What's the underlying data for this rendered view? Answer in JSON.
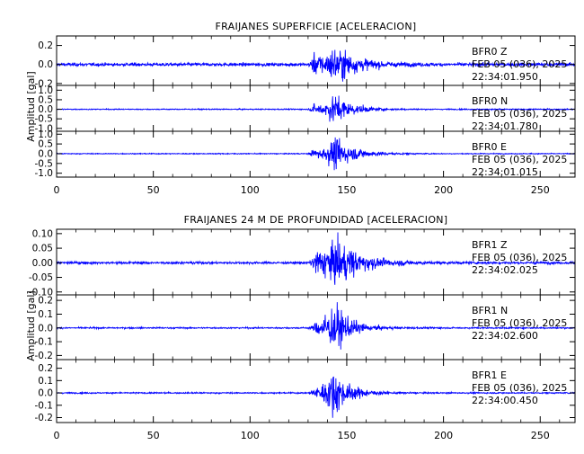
{
  "chart_data": [
    {
      "type": "line",
      "title": "FRAIJANES SUPERFICIE [ACELERACION]",
      "ylabel": "Amplitud [gal]",
      "xlabel": "",
      "xlim": [
        0,
        268
      ],
      "xticks": [
        0,
        50,
        100,
        150,
        200,
        250
      ],
      "xtick_labels": [
        "0",
        "50",
        "100",
        "150",
        "200",
        "250"
      ],
      "line_color": "#0000ff",
      "panels": [
        {
          "station": "BFR0",
          "component": "Z",
          "date": "FEB 05 (036), 2025",
          "time": "22:34:01.950",
          "ylim": [
            -0.22,
            0.3
          ],
          "yticks": [
            -0.2,
            0.0,
            0.2
          ],
          "ytick_labels": [
            "-0.2",
            "0.0",
            "0.2"
          ],
          "noise_level": 0.025,
          "events": [
            {
              "onset_s": 129,
              "peak_s": 144.5,
              "peak_amp": 0.25,
              "decay_s": 11
            },
            {
              "onset_s": 129,
              "peak_s": 133,
              "peak_amp": 0.12,
              "decay_s": 8
            }
          ]
        },
        {
          "station": "BFR0",
          "component": "N",
          "date": "FEB 05 (036), 2025",
          "time": "22:34:01.780",
          "ylim": [
            -1.15,
            1.25
          ],
          "yticks": [
            -1.0,
            -0.5,
            0.0,
            0.5,
            1.0
          ],
          "ytick_labels": [
            "-1.0",
            "-0.5",
            "0.0",
            "0.5",
            "1.0"
          ],
          "noise_level": 0.04,
          "events": [
            {
              "onset_s": 129,
              "peak_s": 144,
              "peak_amp": 1.05,
              "decay_s": 9
            },
            {
              "onset_s": 129,
              "peak_s": 133,
              "peak_amp": 0.3,
              "decay_s": 8
            }
          ]
        },
        {
          "station": "BFR0",
          "component": "E",
          "date": "FEB 05 (036), 2025",
          "time": "22:34:01.015",
          "ylim": [
            -1.2,
            1.15
          ],
          "yticks": [
            -1.0,
            -0.5,
            0.0,
            0.5,
            1.0
          ],
          "ytick_labels": [
            "-1.0",
            "-0.5",
            "0.0",
            "0.5",
            "1.0"
          ],
          "noise_level": 0.035,
          "events": [
            {
              "onset_s": 129,
              "peak_s": 144.5,
              "peak_amp": 1.1,
              "decay_s": 10
            },
            {
              "onset_s": 129,
              "peak_s": 133,
              "peak_amp": 0.3,
              "decay_s": 8
            }
          ]
        }
      ]
    },
    {
      "type": "line",
      "title": "FRAIJANES 24 M DE PROFUNDIDAD [ACELERACION]",
      "ylabel": "Amplitud [gal]",
      "xlabel": "",
      "xlim": [
        0,
        268
      ],
      "xticks": [
        0,
        50,
        100,
        150,
        200,
        250
      ],
      "xtick_labels": [
        "0",
        "50",
        "100",
        "150",
        "200",
        "250"
      ],
      "line_color": "#0000ff",
      "panels": [
        {
          "station": "BFR1",
          "component": "Z",
          "date": "FEB 05 (036), 2025",
          "time": "22:34:02.025",
          "ylim": [
            -0.11,
            0.115
          ],
          "yticks": [
            -0.1,
            -0.05,
            0.0,
            0.05,
            0.1
          ],
          "ytick_labels": [
            "-0.10",
            "-0.05",
            "0.00",
            "0.05",
            "0.10"
          ],
          "noise_level": 0.006,
          "events": [
            {
              "onset_s": 129,
              "peak_s": 144.5,
              "peak_amp": 0.1,
              "decay_s": 12
            },
            {
              "onset_s": 129,
              "peak_s": 134,
              "peak_amp": 0.05,
              "decay_s": 12
            }
          ]
        },
        {
          "station": "BFR1",
          "component": "N",
          "date": "FEB 05 (036), 2025",
          "time": "22:34:02.600",
          "ylim": [
            -0.23,
            0.24
          ],
          "yticks": [
            -0.2,
            -0.1,
            0.0,
            0.1,
            0.2
          ],
          "ytick_labels": [
            "-0.2",
            "-0.1",
            "0.0",
            "0.1",
            "0.2"
          ],
          "noise_level": 0.008,
          "events": [
            {
              "onset_s": 129,
              "peak_s": 144,
              "peak_amp": 0.23,
              "decay_s": 8
            },
            {
              "onset_s": 129,
              "peak_s": 134,
              "peak_amp": 0.05,
              "decay_s": 10
            }
          ]
        },
        {
          "station": "BFR1",
          "component": "E",
          "date": "FEB 05 (036), 2025",
          "time": "22:34:00.450",
          "ylim": [
            -0.24,
            0.27
          ],
          "yticks": [
            -0.2,
            -0.1,
            0.0,
            0.1,
            0.2
          ],
          "ytick_labels": [
            "-0.2",
            "-0.1",
            "0.0",
            "0.1",
            "0.2"
          ],
          "noise_level": 0.008,
          "events": [
            {
              "onset_s": 129,
              "peak_s": 143.5,
              "peak_amp": 0.24,
              "decay_s": 8
            },
            {
              "onset_s": 129,
              "peak_s": 134,
              "peak_amp": 0.05,
              "decay_s": 10
            }
          ]
        }
      ]
    }
  ]
}
